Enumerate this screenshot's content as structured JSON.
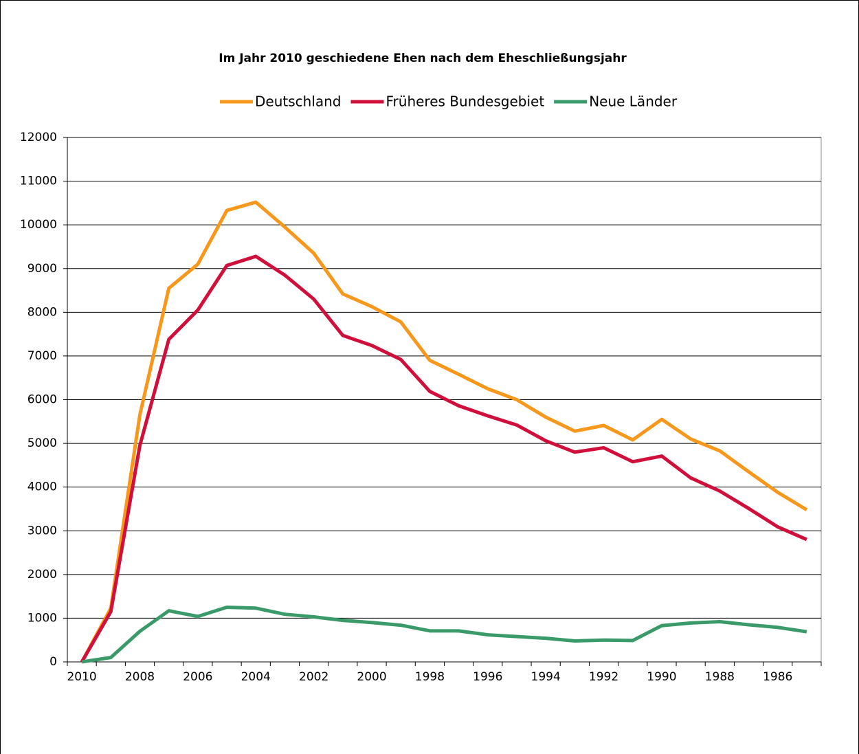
{
  "chart_data": {
    "type": "line",
    "title": "Im Jahr 2010 geschiedene Ehen nach dem Eheschließungsjahr",
    "categories": [
      "2010",
      null,
      "2008",
      null,
      "2006",
      null,
      "2004",
      null,
      "2002",
      null,
      "2000",
      null,
      "1998",
      null,
      "1996",
      null,
      "1994",
      null,
      "1992",
      null,
      "1990",
      null,
      "1988",
      null,
      "1986",
      null
    ],
    "series": [
      {
        "name": "Deutschland",
        "color": "#f7981d",
        "values": [
          0,
          1230,
          5650,
          8550,
          9100,
          10330,
          10520,
          9950,
          9350,
          8420,
          8130,
          7780,
          6900,
          6580,
          6250,
          6000,
          5600,
          5280,
          5410,
          5080,
          5550,
          5100,
          4830,
          4350,
          3880,
          3480
        ]
      },
      {
        "name": "Früheres Bundesgebiet",
        "color": "#d0103a",
        "values": [
          0,
          1150,
          4950,
          7380,
          8050,
          9070,
          9280,
          8850,
          8300,
          7470,
          7240,
          6920,
          6190,
          5860,
          5630,
          5420,
          5060,
          4800,
          4900,
          4580,
          4710,
          4210,
          3910,
          3510,
          3090,
          2800
        ]
      },
      {
        "name": "Neue Länder",
        "color": "#3a9a6a",
        "values": [
          0,
          100,
          700,
          1170,
          1040,
          1250,
          1230,
          1090,
          1030,
          950,
          900,
          840,
          710,
          710,
          620,
          580,
          540,
          480,
          500,
          490,
          830,
          890,
          920,
          850,
          790,
          690
        ]
      }
    ],
    "ylim": [
      0,
      12000
    ],
    "yticks": [
      0,
      1000,
      2000,
      3000,
      4000,
      5000,
      6000,
      7000,
      8000,
      9000,
      10000,
      11000,
      12000
    ],
    "grid": true,
    "legend": "top"
  }
}
